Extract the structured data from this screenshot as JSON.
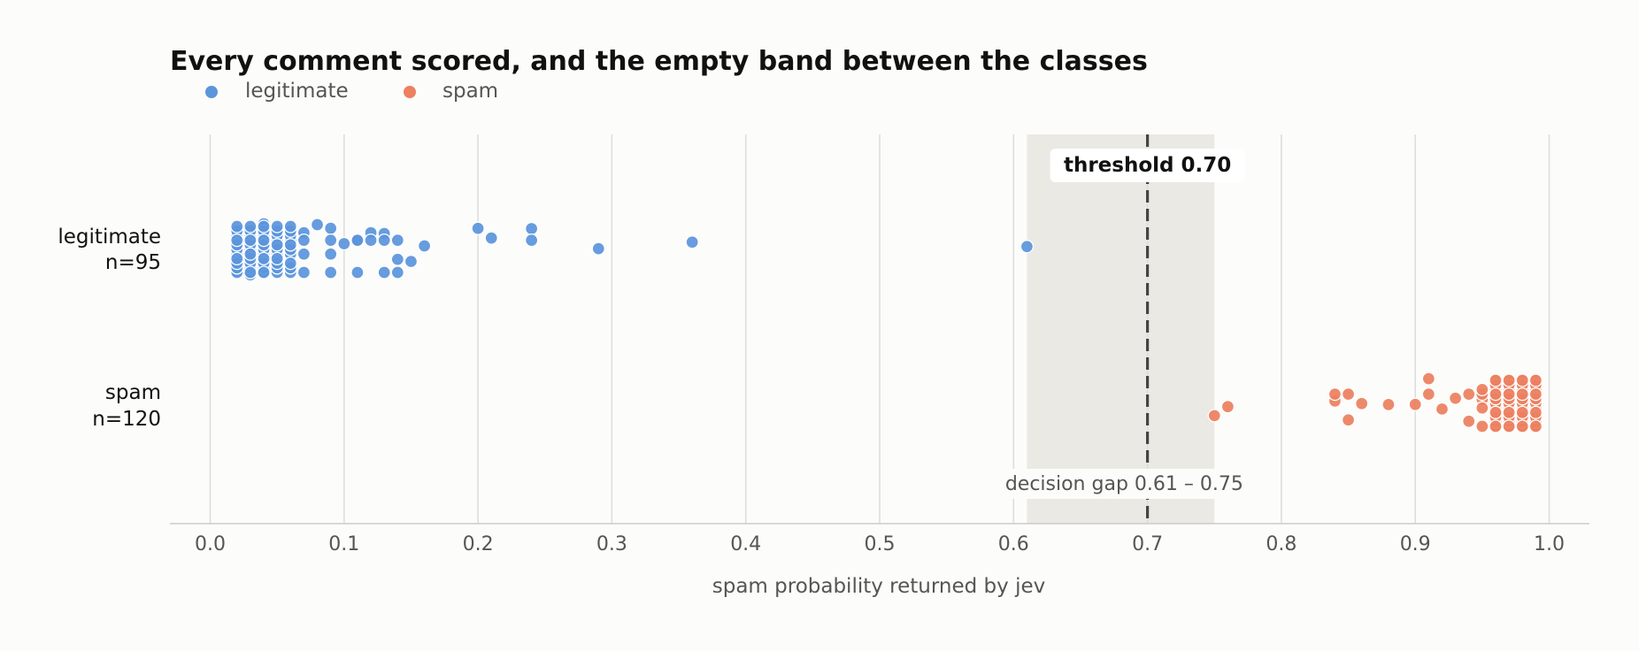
{
  "chart_data": {
    "type": "scatter",
    "title": "Every comment scored, and the empty band between the classes",
    "xlabel": "spam probability returned by jev",
    "ylabel": "",
    "xlim": [
      -0.03,
      1.03
    ],
    "xticks": [
      "0.0",
      "0.1",
      "0.2",
      "0.3",
      "0.4",
      "0.5",
      "0.6",
      "0.7",
      "0.8",
      "0.9",
      "1.0"
    ],
    "grid": "vertical",
    "legend": "top-left",
    "categories": [
      {
        "label": "legitimate",
        "count_label": "n=95"
      },
      {
        "label": "spam",
        "count_label": "n=120"
      }
    ],
    "colors": {
      "legitimate": "#5b95dc",
      "spam": "#ec8060",
      "gap_band": "#ebe9e4",
      "threshold_line": "#444444"
    },
    "threshold": {
      "value": 0.7,
      "label": "threshold 0.70"
    },
    "gap": {
      "from": 0.61,
      "to": 0.75,
      "label": "decision gap  0.61 – 0.75"
    },
    "series": [
      {
        "name": "legitimate",
        "values": [
          0.02,
          0.02,
          0.02,
          0.02,
          0.02,
          0.02,
          0.02,
          0.02,
          0.02,
          0.02,
          0.02,
          0.02,
          0.03,
          0.03,
          0.03,
          0.03,
          0.03,
          0.03,
          0.03,
          0.03,
          0.03,
          0.03,
          0.03,
          0.03,
          0.03,
          0.03,
          0.04,
          0.04,
          0.04,
          0.04,
          0.04,
          0.04,
          0.04,
          0.04,
          0.04,
          0.04,
          0.04,
          0.04,
          0.05,
          0.05,
          0.05,
          0.05,
          0.05,
          0.05,
          0.05,
          0.05,
          0.05,
          0.05,
          0.06,
          0.06,
          0.06,
          0.06,
          0.06,
          0.06,
          0.06,
          0.06,
          0.06,
          0.06,
          0.07,
          0.07,
          0.07,
          0.07,
          0.08,
          0.09,
          0.09,
          0.09,
          0.09,
          0.1,
          0.11,
          0.11,
          0.11,
          0.12,
          0.12,
          0.13,
          0.13,
          0.13,
          0.14,
          0.14,
          0.14,
          0.15,
          0.16,
          0.2,
          0.21,
          0.24,
          0.24,
          0.29,
          0.36,
          0.61,
          0.04,
          0.05,
          0.03,
          0.02,
          0.06,
          0.04,
          0.05
        ]
      },
      {
        "name": "spam",
        "values": [
          0.75,
          0.76,
          0.84,
          0.84,
          0.85,
          0.85,
          0.86,
          0.88,
          0.9,
          0.91,
          0.91,
          0.92,
          0.93,
          0.94,
          0.94,
          0.95,
          0.95,
          0.95,
          0.95,
          0.95,
          0.96,
          0.96,
          0.96,
          0.96,
          0.96,
          0.96,
          0.96,
          0.96,
          0.96,
          0.96,
          0.96,
          0.96,
          0.96,
          0.96,
          0.96,
          0.96,
          0.96,
          0.96,
          0.96,
          0.96,
          0.96,
          0.96,
          0.96,
          0.96,
          0.96,
          0.97,
          0.97,
          0.97,
          0.97,
          0.97,
          0.97,
          0.97,
          0.97,
          0.97,
          0.97,
          0.97,
          0.97,
          0.97,
          0.97,
          0.97,
          0.97,
          0.97,
          0.97,
          0.97,
          0.97,
          0.97,
          0.97,
          0.97,
          0.97,
          0.97,
          0.98,
          0.98,
          0.98,
          0.98,
          0.98,
          0.98,
          0.98,
          0.98,
          0.98,
          0.98,
          0.98,
          0.98,
          0.98,
          0.98,
          0.98,
          0.98,
          0.98,
          0.98,
          0.98,
          0.98,
          0.98,
          0.98,
          0.98,
          0.98,
          0.98,
          0.99,
          0.99,
          0.99,
          0.99,
          0.99,
          0.99,
          0.99,
          0.99,
          0.99,
          0.99,
          0.99,
          0.99,
          0.99,
          0.99,
          0.99,
          0.99,
          0.99,
          0.99,
          0.99,
          0.99,
          0.99,
          0.99,
          0.99,
          0.99,
          0.99
        ]
      }
    ]
  }
}
